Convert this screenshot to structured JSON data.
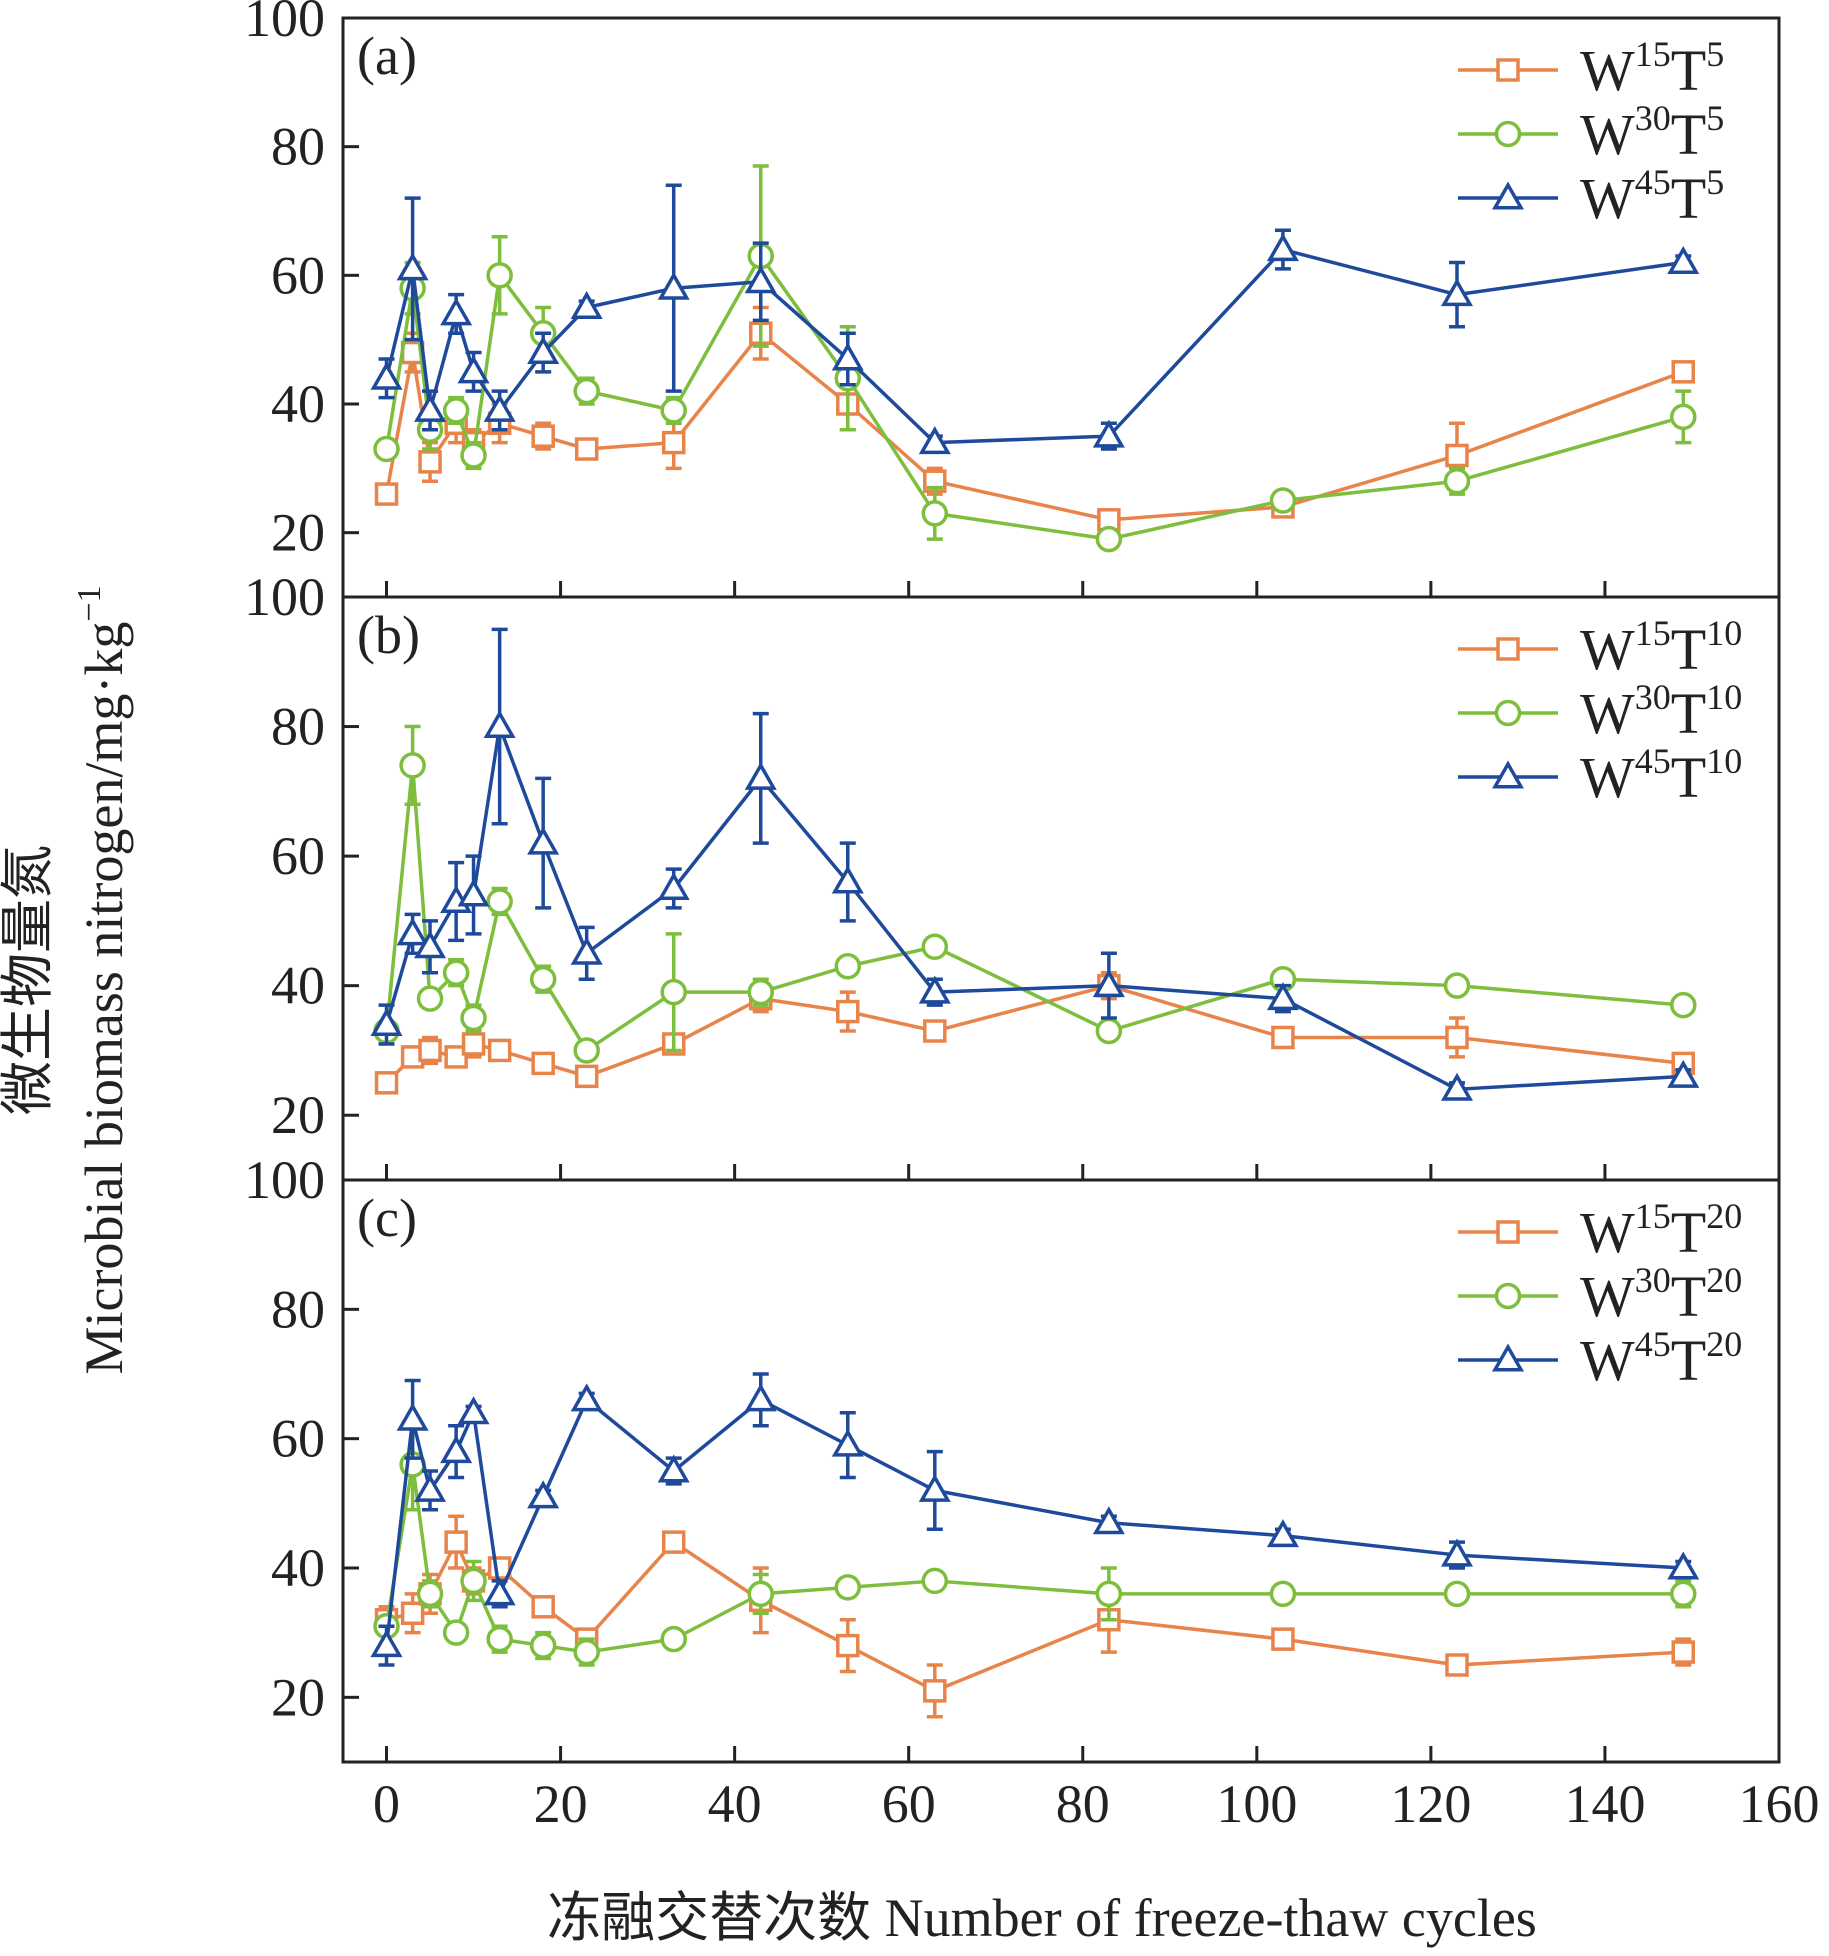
{
  "colors": {
    "orange": "#E8834A",
    "green": "#7DBE3C",
    "blue": "#1F4A9C",
    "axis": "#222222"
  },
  "chart_data": {
    "type": "line",
    "xlabel": "冻融交替次数 Number of freeze-thaw cycles",
    "ylabel_cn": "微生物量氮",
    "ylabel_main": "Microbial biomass nitrogen/mg·kg",
    "ylabel_sup": "−1",
    "xlim": [
      -5,
      160
    ],
    "xticks": [
      "0",
      "20",
      "40",
      "60",
      "80",
      "100",
      "120",
      "140",
      "160"
    ],
    "ylim": [
      10,
      100
    ],
    "yticks": [
      "20",
      "40",
      "60",
      "80",
      "100"
    ],
    "panels": [
      {
        "label": "(a)",
        "series": [
          {
            "name": "W15T5",
            "base": "W",
            "sup1": "15",
            "mid": "T",
            "sup2": "5",
            "color": "orange",
            "marker": "square",
            "x": [
              0,
              3,
              5,
              8,
              10,
              13,
              18,
              23,
              33,
              43,
              53,
              63,
              83,
              103,
              123,
              149
            ],
            "y": [
              26,
              48,
              31,
              37,
              34,
              37,
              35,
              33,
              34,
              51,
              40,
              28,
              22,
              24,
              32,
              45
            ],
            "err": [
              1,
              3,
              3,
              3,
              2,
              3,
              2,
              1,
              4,
              4,
              4,
              2,
              1,
              1,
              5,
              1
            ]
          },
          {
            "name": "W30T5",
            "base": "W",
            "sup1": "30",
            "mid": "T",
            "sup2": "5",
            "color": "green",
            "marker": "circle",
            "x": [
              0,
              3,
              5,
              8,
              10,
              13,
              18,
              23,
              33,
              43,
              53,
              63,
              83,
              103,
              123,
              149
            ],
            "y": [
              33,
              58,
              36,
              39,
              32,
              60,
              51,
              42,
              39,
              63,
              44,
              23,
              19,
              25,
              28,
              38
            ],
            "err": [
              1,
              4,
              3,
              2,
              2,
              6,
              4,
              2,
              2,
              14,
              8,
              4,
              1,
              1,
              2,
              4
            ]
          },
          {
            "name": "W45T5",
            "base": "W",
            "sup1": "45",
            "mid": "T",
            "sup2": "5",
            "color": "blue",
            "marker": "triangle",
            "x": [
              0,
              3,
              5,
              8,
              10,
              13,
              18,
              23,
              33,
              43,
              53,
              63,
              83,
              103,
              123,
              149
            ],
            "y": [
              44,
              61,
              39,
              54,
              45,
              39,
              48,
              55,
              58,
              59,
              47,
              34,
              35,
              64,
              57,
              62
            ],
            "err": [
              3,
              11,
              3,
              3,
              3,
              3,
              3,
              1,
              16,
              6,
              4,
              1,
              2,
              3,
              5,
              1
            ]
          }
        ]
      },
      {
        "label": "(b)",
        "series": [
          {
            "name": "W15T10",
            "base": "W",
            "sup1": "15",
            "mid": "T",
            "sup2": "10",
            "color": "orange",
            "marker": "square",
            "x": [
              0,
              3,
              5,
              8,
              10,
              13,
              18,
              23,
              33,
              43,
              53,
              63,
              83,
              103,
              123,
              149
            ],
            "y": [
              25,
              29,
              30,
              29,
              31,
              30,
              28,
              26,
              31,
              38,
              36,
              33,
              40,
              32,
              32,
              28
            ],
            "err": [
              1,
              1,
              2,
              1,
              2,
              1,
              1,
              1,
              1,
              2,
              3,
              1,
              2,
              1,
              3,
              1
            ]
          },
          {
            "name": "W30T10",
            "base": "W",
            "sup1": "30",
            "mid": "T",
            "sup2": "10",
            "color": "green",
            "marker": "circle",
            "x": [
              0,
              3,
              5,
              8,
              10,
              13,
              18,
              23,
              33,
              43,
              53,
              63,
              83,
              103,
              123,
              149
            ],
            "y": [
              33,
              74,
              38,
              42,
              35,
              53,
              41,
              30,
              39,
              39,
              43,
              46,
              33,
              41,
              40,
              37
            ],
            "err": [
              1,
              6,
              1,
              2,
              2,
              2,
              2,
              1,
              9,
              2,
              1,
              1,
              1,
              1,
              1,
              1
            ]
          },
          {
            "name": "W45T10",
            "base": "W",
            "sup1": "45",
            "mid": "T",
            "sup2": "10",
            "color": "blue",
            "marker": "triangle",
            "x": [
              0,
              3,
              5,
              8,
              10,
              13,
              18,
              23,
              33,
              43,
              53,
              63,
              83,
              103,
              123,
              149
            ],
            "y": [
              34,
              48,
              46,
              53,
              54,
              80,
              62,
              45,
              55,
              72,
              56,
              39,
              40,
              38,
              24,
              26
            ],
            "err": [
              3,
              3,
              4,
              6,
              6,
              15,
              10,
              4,
              3,
              10,
              6,
              2,
              5,
              2,
              1,
              1
            ]
          }
        ]
      },
      {
        "label": "(c)",
        "series": [
          {
            "name": "W15T20",
            "base": "W",
            "sup1": "15",
            "mid": "T",
            "sup2": "20",
            "color": "orange",
            "marker": "square",
            "x": [
              0,
              3,
              5,
              8,
              10,
              13,
              18,
              23,
              33,
              43,
              53,
              63,
              83,
              103,
              123,
              149
            ],
            "y": [
              32,
              33,
              36,
              44,
              38,
              40,
              34,
              29,
              44,
              35,
              28,
              21,
              32,
              29,
              25,
              27
            ],
            "err": [
              2,
              3,
              3,
              4,
              2,
              1,
              1,
              1,
              1,
              5,
              4,
              4,
              5,
              1,
              1,
              2
            ]
          },
          {
            "name": "W30T20",
            "base": "W",
            "sup1": "30",
            "mid": "T",
            "sup2": "20",
            "color": "green",
            "marker": "circle",
            "x": [
              0,
              3,
              5,
              8,
              10,
              13,
              18,
              23,
              33,
              43,
              53,
              63,
              83,
              103,
              123,
              149
            ],
            "y": [
              31,
              56,
              36,
              30,
              38,
              29,
              28,
              27,
              29,
              36,
              37,
              38,
              36,
              36,
              36,
              36
            ],
            "err": [
              1,
              7,
              2,
              1,
              3,
              2,
              2,
              2,
              1,
              3,
              1,
              1,
              4,
              1,
              1,
              2
            ]
          },
          {
            "name": "W45T20",
            "base": "W",
            "sup1": "45",
            "mid": "T",
            "sup2": "20",
            "color": "blue",
            "marker": "triangle",
            "x": [
              0,
              3,
              5,
              8,
              10,
              13,
              18,
              23,
              33,
              43,
              53,
              63,
              83,
              103,
              123,
              149
            ],
            "y": [
              28,
              63,
              52,
              58,
              64,
              36,
              51,
              66,
              55,
              66,
              59,
              52,
              47,
              45,
              42,
              40
            ],
            "err": [
              3,
              6,
              3,
              4,
              1,
              2,
              1,
              1,
              2,
              4,
              5,
              6,
              1,
              1,
              2,
              1
            ]
          }
        ]
      }
    ]
  }
}
